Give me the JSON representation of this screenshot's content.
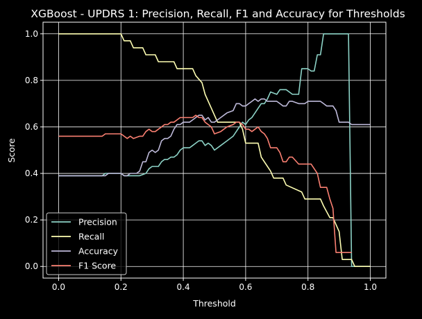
{
  "chart_data": {
    "type": "line",
    "title": "XGBoost - UPDRS 1: Precision, Recall, F1 and Accuracy for Thresholds",
    "xlabel": "Threshold",
    "ylabel": "Score",
    "xlim": [
      -0.05,
      1.05
    ],
    "ylim": [
      -0.05,
      1.05
    ],
    "xticks": [
      0.0,
      0.2,
      0.4,
      0.6,
      0.8,
      1.0
    ],
    "xtick_labels": [
      "0.0",
      "0.2",
      "0.4",
      "0.6",
      "0.8",
      "1.0"
    ],
    "yticks": [
      0.0,
      0.2,
      0.4,
      0.6,
      0.8,
      1.0
    ],
    "ytick_labels": [
      "0.0",
      "0.2",
      "0.4",
      "0.6",
      "0.8",
      "1.0"
    ],
    "grid": true,
    "legend_position": "lower-left",
    "colors": {
      "background": "#000000",
      "foreground": "#ffffff",
      "grid": "#ffffff"
    },
    "series": [
      {
        "name": "Precision",
        "color": "#8dd3c7",
        "x": [
          0.0,
          0.14,
          0.15,
          0.2,
          0.21,
          0.22,
          0.23,
          0.25,
          0.26,
          0.28,
          0.29,
          0.3,
          0.31,
          0.32,
          0.33,
          0.34,
          0.35,
          0.36,
          0.37,
          0.38,
          0.39,
          0.4,
          0.42,
          0.43,
          0.44,
          0.45,
          0.46,
          0.47,
          0.48,
          0.49,
          0.5,
          0.52,
          0.54,
          0.56,
          0.57,
          0.58,
          0.59,
          0.6,
          0.61,
          0.62,
          0.63,
          0.64,
          0.65,
          0.66,
          0.67,
          0.68,
          0.7,
          0.71,
          0.72,
          0.73,
          0.74,
          0.75,
          0.77,
          0.78,
          0.79,
          0.8,
          0.81,
          0.82,
          0.83,
          0.84,
          0.85,
          0.93,
          0.94,
          0.95,
          1.0
        ],
        "y": [
          0.39,
          0.39,
          0.4,
          0.4,
          0.39,
          0.39,
          0.39,
          0.39,
          0.39,
          0.4,
          0.42,
          0.43,
          0.43,
          0.43,
          0.45,
          0.46,
          0.46,
          0.47,
          0.47,
          0.48,
          0.5,
          0.51,
          0.51,
          0.52,
          0.53,
          0.54,
          0.54,
          0.52,
          0.53,
          0.52,
          0.5,
          0.52,
          0.54,
          0.56,
          0.58,
          0.6,
          0.62,
          0.61,
          0.63,
          0.64,
          0.66,
          0.68,
          0.7,
          0.7,
          0.72,
          0.75,
          0.74,
          0.76,
          0.76,
          0.76,
          0.75,
          0.74,
          0.74,
          0.85,
          0.85,
          0.85,
          0.84,
          0.84,
          0.91,
          0.91,
          1.0,
          1.0,
          0.0,
          0.0,
          0.0
        ]
      },
      {
        "name": "Recall",
        "color": "#ffffb3",
        "x": [
          0.0,
          0.2,
          0.21,
          0.23,
          0.24,
          0.27,
          0.28,
          0.31,
          0.32,
          0.37,
          0.38,
          0.43,
          0.44,
          0.46,
          0.47,
          0.48,
          0.49,
          0.5,
          0.51,
          0.52,
          0.58,
          0.59,
          0.6,
          0.64,
          0.65,
          0.68,
          0.69,
          0.72,
          0.73,
          0.78,
          0.79,
          0.84,
          0.85,
          0.87,
          0.88,
          0.89,
          0.9,
          0.91,
          0.93,
          0.94,
          0.95,
          1.0
        ],
        "y": [
          1.0,
          1.0,
          0.97,
          0.97,
          0.94,
          0.94,
          0.91,
          0.91,
          0.88,
          0.88,
          0.85,
          0.85,
          0.82,
          0.79,
          0.74,
          0.71,
          0.68,
          0.65,
          0.62,
          0.62,
          0.62,
          0.59,
          0.53,
          0.53,
          0.47,
          0.41,
          0.38,
          0.38,
          0.35,
          0.32,
          0.29,
          0.29,
          0.26,
          0.21,
          0.21,
          0.18,
          0.15,
          0.03,
          0.03,
          0.03,
          0.0,
          0.0
        ]
      },
      {
        "name": "Accuracy",
        "color": "#bebada",
        "x": [
          0.0,
          0.15,
          0.16,
          0.2,
          0.21,
          0.22,
          0.23,
          0.25,
          0.26,
          0.27,
          0.28,
          0.29,
          0.3,
          0.31,
          0.32,
          0.33,
          0.34,
          0.35,
          0.36,
          0.37,
          0.38,
          0.39,
          0.4,
          0.42,
          0.43,
          0.44,
          0.45,
          0.46,
          0.47,
          0.48,
          0.49,
          0.5,
          0.52,
          0.54,
          0.56,
          0.57,
          0.58,
          0.59,
          0.6,
          0.61,
          0.62,
          0.63,
          0.64,
          0.65,
          0.66,
          0.67,
          0.68,
          0.7,
          0.71,
          0.72,
          0.73,
          0.74,
          0.75,
          0.77,
          0.78,
          0.79,
          0.8,
          0.81,
          0.82,
          0.83,
          0.84,
          0.85,
          0.86,
          0.87,
          0.88,
          0.89,
          0.9,
          0.91,
          0.93,
          0.94,
          0.95,
          1.0
        ],
        "y": [
          0.39,
          0.39,
          0.4,
          0.4,
          0.39,
          0.39,
          0.4,
          0.4,
          0.41,
          0.45,
          0.45,
          0.49,
          0.5,
          0.49,
          0.5,
          0.54,
          0.55,
          0.55,
          0.56,
          0.59,
          0.61,
          0.61,
          0.62,
          0.62,
          0.63,
          0.64,
          0.65,
          0.65,
          0.63,
          0.64,
          0.62,
          0.62,
          0.64,
          0.66,
          0.67,
          0.7,
          0.7,
          0.69,
          0.69,
          0.7,
          0.71,
          0.72,
          0.71,
          0.72,
          0.72,
          0.71,
          0.71,
          0.71,
          0.7,
          0.69,
          0.69,
          0.71,
          0.71,
          0.7,
          0.7,
          0.7,
          0.71,
          0.71,
          0.71,
          0.71,
          0.71,
          0.7,
          0.69,
          0.69,
          0.69,
          0.67,
          0.62,
          0.62,
          0.62,
          0.61,
          0.61,
          0.61
        ]
      },
      {
        "name": "F1 Score",
        "color": "#fb8072",
        "x": [
          0.0,
          0.14,
          0.15,
          0.2,
          0.21,
          0.22,
          0.23,
          0.24,
          0.26,
          0.27,
          0.28,
          0.29,
          0.3,
          0.31,
          0.32,
          0.33,
          0.34,
          0.35,
          0.36,
          0.37,
          0.38,
          0.39,
          0.4,
          0.42,
          0.43,
          0.44,
          0.45,
          0.46,
          0.47,
          0.48,
          0.49,
          0.5,
          0.52,
          0.54,
          0.56,
          0.57,
          0.58,
          0.59,
          0.6,
          0.61,
          0.62,
          0.63,
          0.64,
          0.65,
          0.66,
          0.67,
          0.68,
          0.7,
          0.71,
          0.72,
          0.73,
          0.74,
          0.75,
          0.77,
          0.78,
          0.79,
          0.8,
          0.81,
          0.82,
          0.83,
          0.84,
          0.85,
          0.86,
          0.87,
          0.88,
          0.89,
          0.9,
          0.91,
          0.93,
          0.94
        ],
        "y": [
          0.56,
          0.56,
          0.57,
          0.57,
          0.56,
          0.55,
          0.56,
          0.55,
          0.56,
          0.56,
          0.58,
          0.59,
          0.58,
          0.58,
          0.59,
          0.6,
          0.61,
          0.61,
          0.62,
          0.62,
          0.63,
          0.64,
          0.64,
          0.64,
          0.64,
          0.65,
          0.64,
          0.64,
          0.62,
          0.61,
          0.6,
          0.57,
          0.58,
          0.6,
          0.61,
          0.62,
          0.62,
          0.61,
          0.59,
          0.59,
          0.58,
          0.59,
          0.6,
          0.58,
          0.57,
          0.55,
          0.51,
          0.51,
          0.49,
          0.45,
          0.45,
          0.47,
          0.47,
          0.44,
          0.44,
          0.44,
          0.44,
          0.44,
          0.42,
          0.4,
          0.34,
          0.34,
          0.34,
          0.29,
          0.25,
          0.06,
          0.06,
          0.06,
          0.06,
          0.06
        ]
      }
    ]
  }
}
